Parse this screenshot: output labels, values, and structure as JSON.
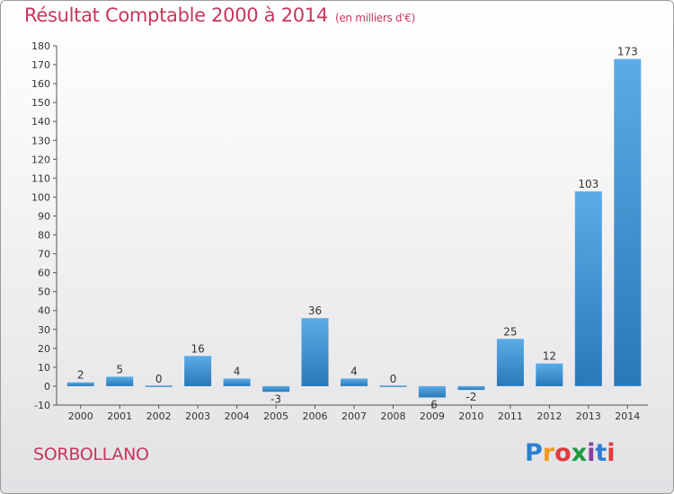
{
  "chart_data": {
    "type": "bar",
    "title": "Résultat Comptable 2000 à 2014",
    "subtitle": "(en milliers d'€)",
    "categories": [
      "2000",
      "2001",
      "2002",
      "2003",
      "2004",
      "2005",
      "2006",
      "2007",
      "2008",
      "2009",
      "2010",
      "2011",
      "2012",
      "2013",
      "2014"
    ],
    "values": [
      2,
      5,
      0,
      16,
      4,
      -3,
      36,
      4,
      0,
      -6,
      -2,
      25,
      12,
      103,
      173
    ],
    "ylim": [
      -10,
      180
    ],
    "yticks": [
      -10,
      0,
      10,
      20,
      30,
      40,
      50,
      60,
      70,
      80,
      90,
      100,
      110,
      120,
      130,
      140,
      150,
      160,
      170,
      180
    ],
    "grid": false,
    "xlabel": "",
    "ylabel": ""
  },
  "place": "SORBOLLANO",
  "logo": {
    "letters": [
      "P",
      "r",
      "o",
      "x",
      "i",
      "t",
      "i"
    ],
    "colors": [
      "#2e7fd0",
      "#f39a1b",
      "#e23a3a",
      "#1e9a3c",
      "#8a3ea3",
      "#2e7fd0",
      "#e23a3a"
    ]
  },
  "colors": {
    "bar_light": "#5aace6",
    "bar_dark": "#2a78b8",
    "axis": "#555555",
    "title": "#c8365a"
  }
}
